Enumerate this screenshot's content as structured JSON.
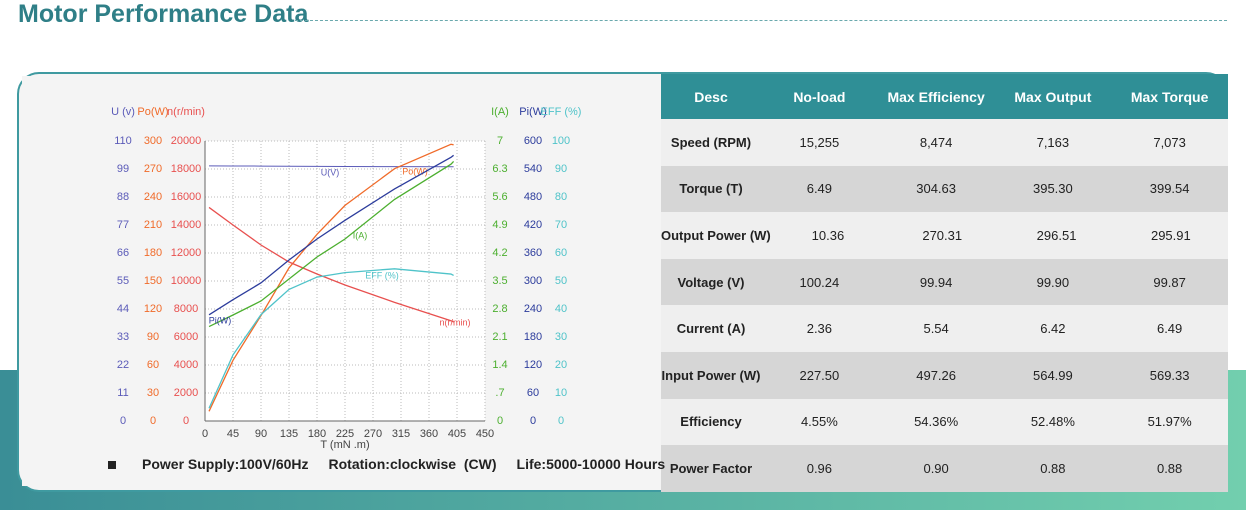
{
  "header": {
    "title": "Motor Performance Data"
  },
  "chart_data": {
    "type": "line",
    "xlabel": "T (mN .m)",
    "xlim": [
      0,
      450
    ],
    "xticks": [
      0,
      45,
      90,
      135,
      180,
      225,
      270,
      315,
      360,
      405,
      450
    ],
    "grid": true,
    "x": [
      6.49,
      45,
      90,
      135,
      180,
      225,
      304.63,
      395.3,
      399.54
    ],
    "axes": [
      {
        "side": "left",
        "label": "U (v)",
        "color": "#5b5bb8",
        "lim": [
          0,
          110
        ],
        "ticks": [
          0,
          11,
          22,
          33,
          44,
          55,
          66,
          77,
          88,
          99,
          110
        ]
      },
      {
        "side": "left",
        "label": "Po(W)",
        "color": "#f06b2a",
        "lim": [
          0,
          300
        ],
        "ticks": [
          0,
          30,
          60,
          90,
          120,
          150,
          180,
          210,
          240,
          270,
          300
        ]
      },
      {
        "side": "left",
        "label": "n(r/min)",
        "color": "#e8504f",
        "lim": [
          0,
          20000
        ],
        "ticks": [
          0,
          2000,
          4000,
          6000,
          8000,
          10000,
          12000,
          14000,
          16000,
          18000,
          20000
        ]
      },
      {
        "side": "right",
        "label": "I(A)",
        "color": "#4caf2f",
        "lim": [
          0,
          7
        ],
        "ticks": [
          0,
          {
            "value": 0.7,
            "label": ".7"
          },
          1.4,
          2.1,
          2.8,
          3.5,
          4.2,
          4.9,
          5.6,
          6.3,
          7
        ]
      },
      {
        "side": "right",
        "label": "Pi(W)",
        "color": "#2c3c9c",
        "lim": [
          0,
          600
        ],
        "ticks": [
          0,
          60,
          120,
          180,
          240,
          300,
          360,
          420,
          480,
          540,
          600
        ]
      },
      {
        "side": "right",
        "label": "EFF (%)",
        "color": "#4fc3c9",
        "lim": [
          0,
          100
        ],
        "ticks": [
          0,
          10,
          20,
          30,
          40,
          50,
          60,
          70,
          80,
          90,
          100
        ]
      }
    ],
    "series": [
      {
        "name": "U(V)",
        "axis": 0,
        "color": "#5b5bb8",
        "values": [
          100.24,
          100.2,
          100.15,
          100.1,
          100.05,
          100,
          99.94,
          99.9,
          99.87
        ]
      },
      {
        "name": "Po(W)",
        "axis": 1,
        "color": "#f06b2a",
        "values": [
          10.36,
          65,
          113,
          164,
          200,
          231,
          270.31,
          296.51,
          295.91
        ]
      },
      {
        "name": "n(r/min)",
        "axis": 2,
        "color": "#e8504f",
        "values": [
          15255,
          14000,
          12571,
          11357,
          10500,
          9714,
          8474,
          7163,
          7073
        ]
      },
      {
        "name": "I(A)",
        "axis": 3,
        "color": "#4caf2f",
        "values": [
          2.36,
          2.65,
          3.0,
          3.55,
          4.1,
          4.55,
          5.54,
          6.42,
          6.49
        ]
      },
      {
        "name": "Pi(W)",
        "axis": 4,
        "color": "#2c3c9c",
        "values": [
          227.5,
          260,
          296,
          345,
          390,
          430,
          497.26,
          564.99,
          569.33
        ]
      },
      {
        "name": "EFF (%)",
        "axis": 5,
        "color": "#4fc3c9",
        "values": [
          4.55,
          23.6,
          38,
          47,
          51.4,
          53,
          54.36,
          52.48,
          51.97
        ]
      }
    ]
  },
  "notes": [
    "Power Supply:100V/60Hz",
    "Rotation:clockwise  (CW)",
    "Life:5000-10000 Hours"
  ],
  "table": {
    "header": [
      "Desc",
      "No-load",
      "Max Efficiency",
      "Max Output",
      "Max Torque"
    ],
    "rows": [
      [
        "Speed (RPM)",
        "15,255",
        "8,474",
        "7,163",
        "7,073"
      ],
      [
        "Torque (T)",
        "6.49",
        "304.63",
        "395.30",
        "399.54"
      ],
      [
        "Output Power (W)",
        "10.36",
        "270.31",
        "296.51",
        "295.91"
      ],
      [
        "Voltage (V)",
        "100.24",
        "99.94",
        "99.90",
        "99.87"
      ],
      [
        "Current (A)",
        "2.36",
        "5.54",
        "6.42",
        "6.49"
      ],
      [
        "Input Power (W)",
        "227.50",
        "497.26",
        "564.99",
        "569.33"
      ],
      [
        "Efficiency",
        "4.55%",
        "54.36%",
        "52.48%",
        "51.97%"
      ],
      [
        "Power Factor",
        "0.96",
        "0.90",
        "0.88",
        "0.88"
      ]
    ]
  }
}
